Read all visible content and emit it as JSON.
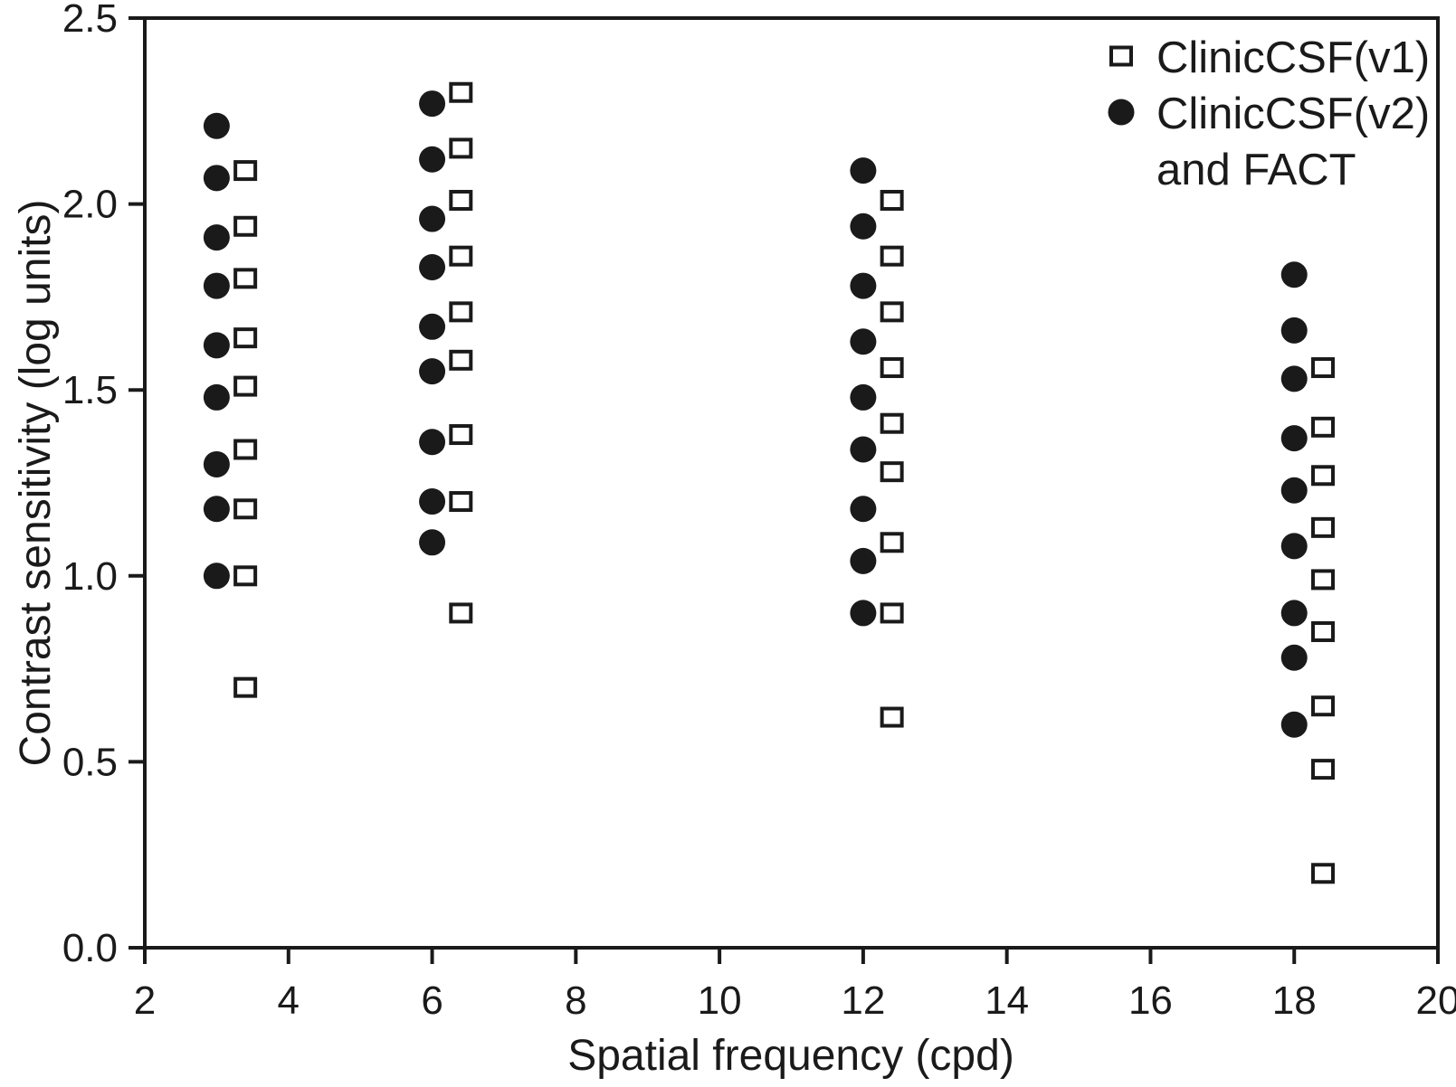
{
  "figure": {
    "background": "#ffffff",
    "ink_color": "#1a1a1a"
  },
  "chart_data": {
    "type": "scatter",
    "title": "",
    "xlabel": "Spatial frequency (cpd)",
    "ylabel": "Contrast sensitivity (log units)",
    "xlim": [
      2,
      20
    ],
    "ylim": [
      0.0,
      2.5
    ],
    "x_ticks": [
      "2",
      "4",
      "6",
      "8",
      "10",
      "12",
      "14",
      "16",
      "18",
      "20"
    ],
    "y_ticks": [
      "0.0",
      "0.5",
      "1.0",
      "1.5",
      "2.0",
      "2.5"
    ],
    "grid": false,
    "legend": {
      "position": "top-right-inside",
      "entries": [
        {
          "marker": "open-square",
          "lines": [
            "ClinicCSF(v1)"
          ]
        },
        {
          "marker": "filled-circle",
          "lines": [
            "ClinicCSF(v2)",
            "and FACT"
          ]
        }
      ]
    },
    "series": [
      {
        "name": "ClinicCSF(v1)",
        "marker": "open-square",
        "x_plot_offset": 0.4,
        "clusters": [
          {
            "frequency_cpd": 3,
            "contrast_sensitivity_log": [
              2.09,
              1.94,
              1.8,
              1.64,
              1.51,
              1.34,
              1.18,
              1.0,
              0.7
            ]
          },
          {
            "frequency_cpd": 6,
            "contrast_sensitivity_log": [
              2.3,
              2.15,
              2.01,
              1.86,
              1.71,
              1.58,
              1.38,
              1.2,
              0.9
            ]
          },
          {
            "frequency_cpd": 12,
            "contrast_sensitivity_log": [
              2.01,
              1.86,
              1.71,
              1.56,
              1.41,
              1.28,
              1.09,
              0.9,
              0.62
            ]
          },
          {
            "frequency_cpd": 18,
            "contrast_sensitivity_log": [
              1.56,
              1.4,
              1.27,
              1.13,
              0.99,
              0.85,
              0.65,
              0.48,
              0.2
            ]
          }
        ]
      },
      {
        "name": "ClinicCSF(v2) and FACT",
        "marker": "filled-circle",
        "x_plot_offset": 0,
        "clusters": [
          {
            "frequency_cpd": 3,
            "contrast_sensitivity_log": [
              2.21,
              2.07,
              1.91,
              1.78,
              1.62,
              1.48,
              1.3,
              1.18,
              1.0
            ]
          },
          {
            "frequency_cpd": 6,
            "contrast_sensitivity_log": [
              2.27,
              2.12,
              1.96,
              1.83,
              1.67,
              1.55,
              1.36,
              1.2,
              1.09
            ]
          },
          {
            "frequency_cpd": 12,
            "contrast_sensitivity_log": [
              2.09,
              1.94,
              1.78,
              1.63,
              1.48,
              1.34,
              1.18,
              1.04,
              0.9
            ]
          },
          {
            "frequency_cpd": 18,
            "contrast_sensitivity_log": [
              1.81,
              1.66,
              1.53,
              1.37,
              1.23,
              1.08,
              0.9,
              0.78,
              0.6
            ]
          }
        ]
      }
    ]
  }
}
